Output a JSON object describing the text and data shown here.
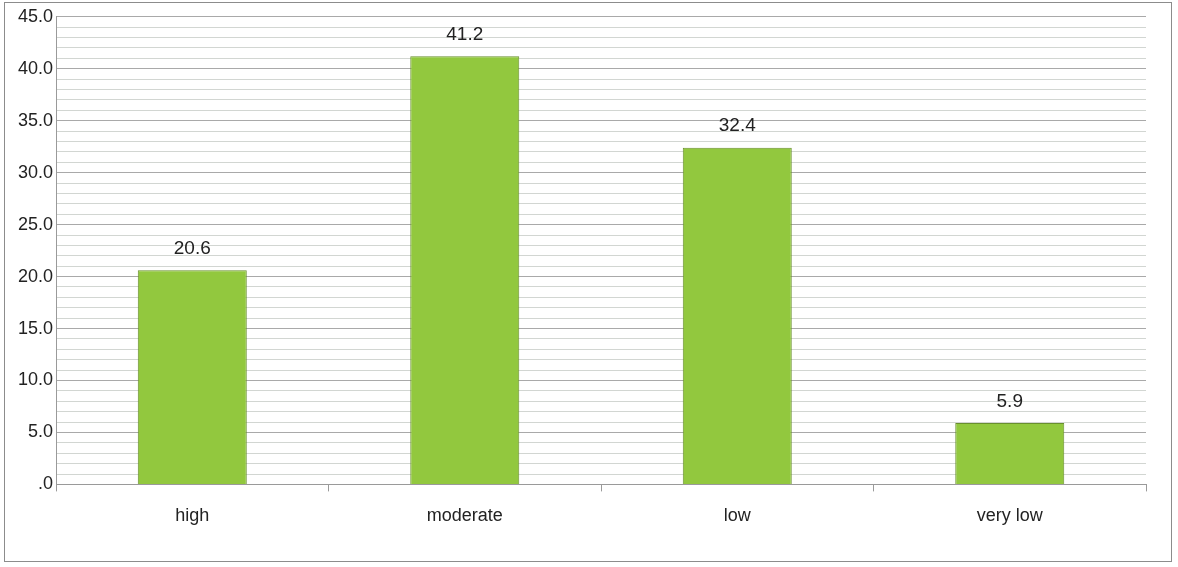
{
  "chart_data": {
    "type": "bar",
    "categories": [
      "high",
      "moderate",
      "low",
      "very low"
    ],
    "values": [
      20.6,
      41.2,
      32.4,
      5.9
    ],
    "color": "#92c83e",
    "ylim": [
      0,
      45
    ],
    "yticks": [
      {
        "value": 0,
        "label": ".0"
      },
      {
        "value": 1,
        "label": null
      },
      {
        "value": 2,
        "label": null
      },
      {
        "value": 3,
        "label": null
      },
      {
        "value": 4,
        "label": null
      },
      {
        "value": 5,
        "label": "5.0"
      },
      {
        "value": 6,
        "label": null
      },
      {
        "value": 7,
        "label": null
      },
      {
        "value": 8,
        "label": null
      },
      {
        "value": 9,
        "label": null
      },
      {
        "value": 10,
        "label": "10.0"
      },
      {
        "value": 11,
        "label": null
      },
      {
        "value": 12,
        "label": null
      },
      {
        "value": 13,
        "label": null
      },
      {
        "value": 14,
        "label": null
      },
      {
        "value": 15,
        "label": "15.0"
      },
      {
        "value": 16,
        "label": null
      },
      {
        "value": 17,
        "label": null
      },
      {
        "value": 18,
        "label": null
      },
      {
        "value": 19,
        "label": null
      },
      {
        "value": 20,
        "label": "20.0"
      },
      {
        "value": 21,
        "label": null
      },
      {
        "value": 22,
        "label": null
      },
      {
        "value": 23,
        "label": null
      },
      {
        "value": 24,
        "label": null
      },
      {
        "value": 25,
        "label": "25.0"
      },
      {
        "value": 26,
        "label": null
      },
      {
        "value": 27,
        "label": null
      },
      {
        "value": 28,
        "label": null
      },
      {
        "value": 29,
        "label": null
      },
      {
        "value": 30,
        "label": "30.0"
      },
      {
        "value": 31,
        "label": null
      },
      {
        "value": 32,
        "label": null
      },
      {
        "value": 33,
        "label": null
      },
      {
        "value": 34,
        "label": null
      },
      {
        "value": 35,
        "label": "35.0"
      },
      {
        "value": 36,
        "label": null
      },
      {
        "value": 37,
        "label": null
      },
      {
        "value": 38,
        "label": null
      },
      {
        "value": 39,
        "label": null
      },
      {
        "value": 40,
        "label": "40.0"
      },
      {
        "value": 41,
        "label": null
      },
      {
        "value": 42,
        "label": null
      },
      {
        "value": 43,
        "label": null
      },
      {
        "value": 44,
        "label": null
      },
      {
        "value": 45,
        "label": "45.0"
      }
    ],
    "grid": "y",
    "data_labels": true
  }
}
